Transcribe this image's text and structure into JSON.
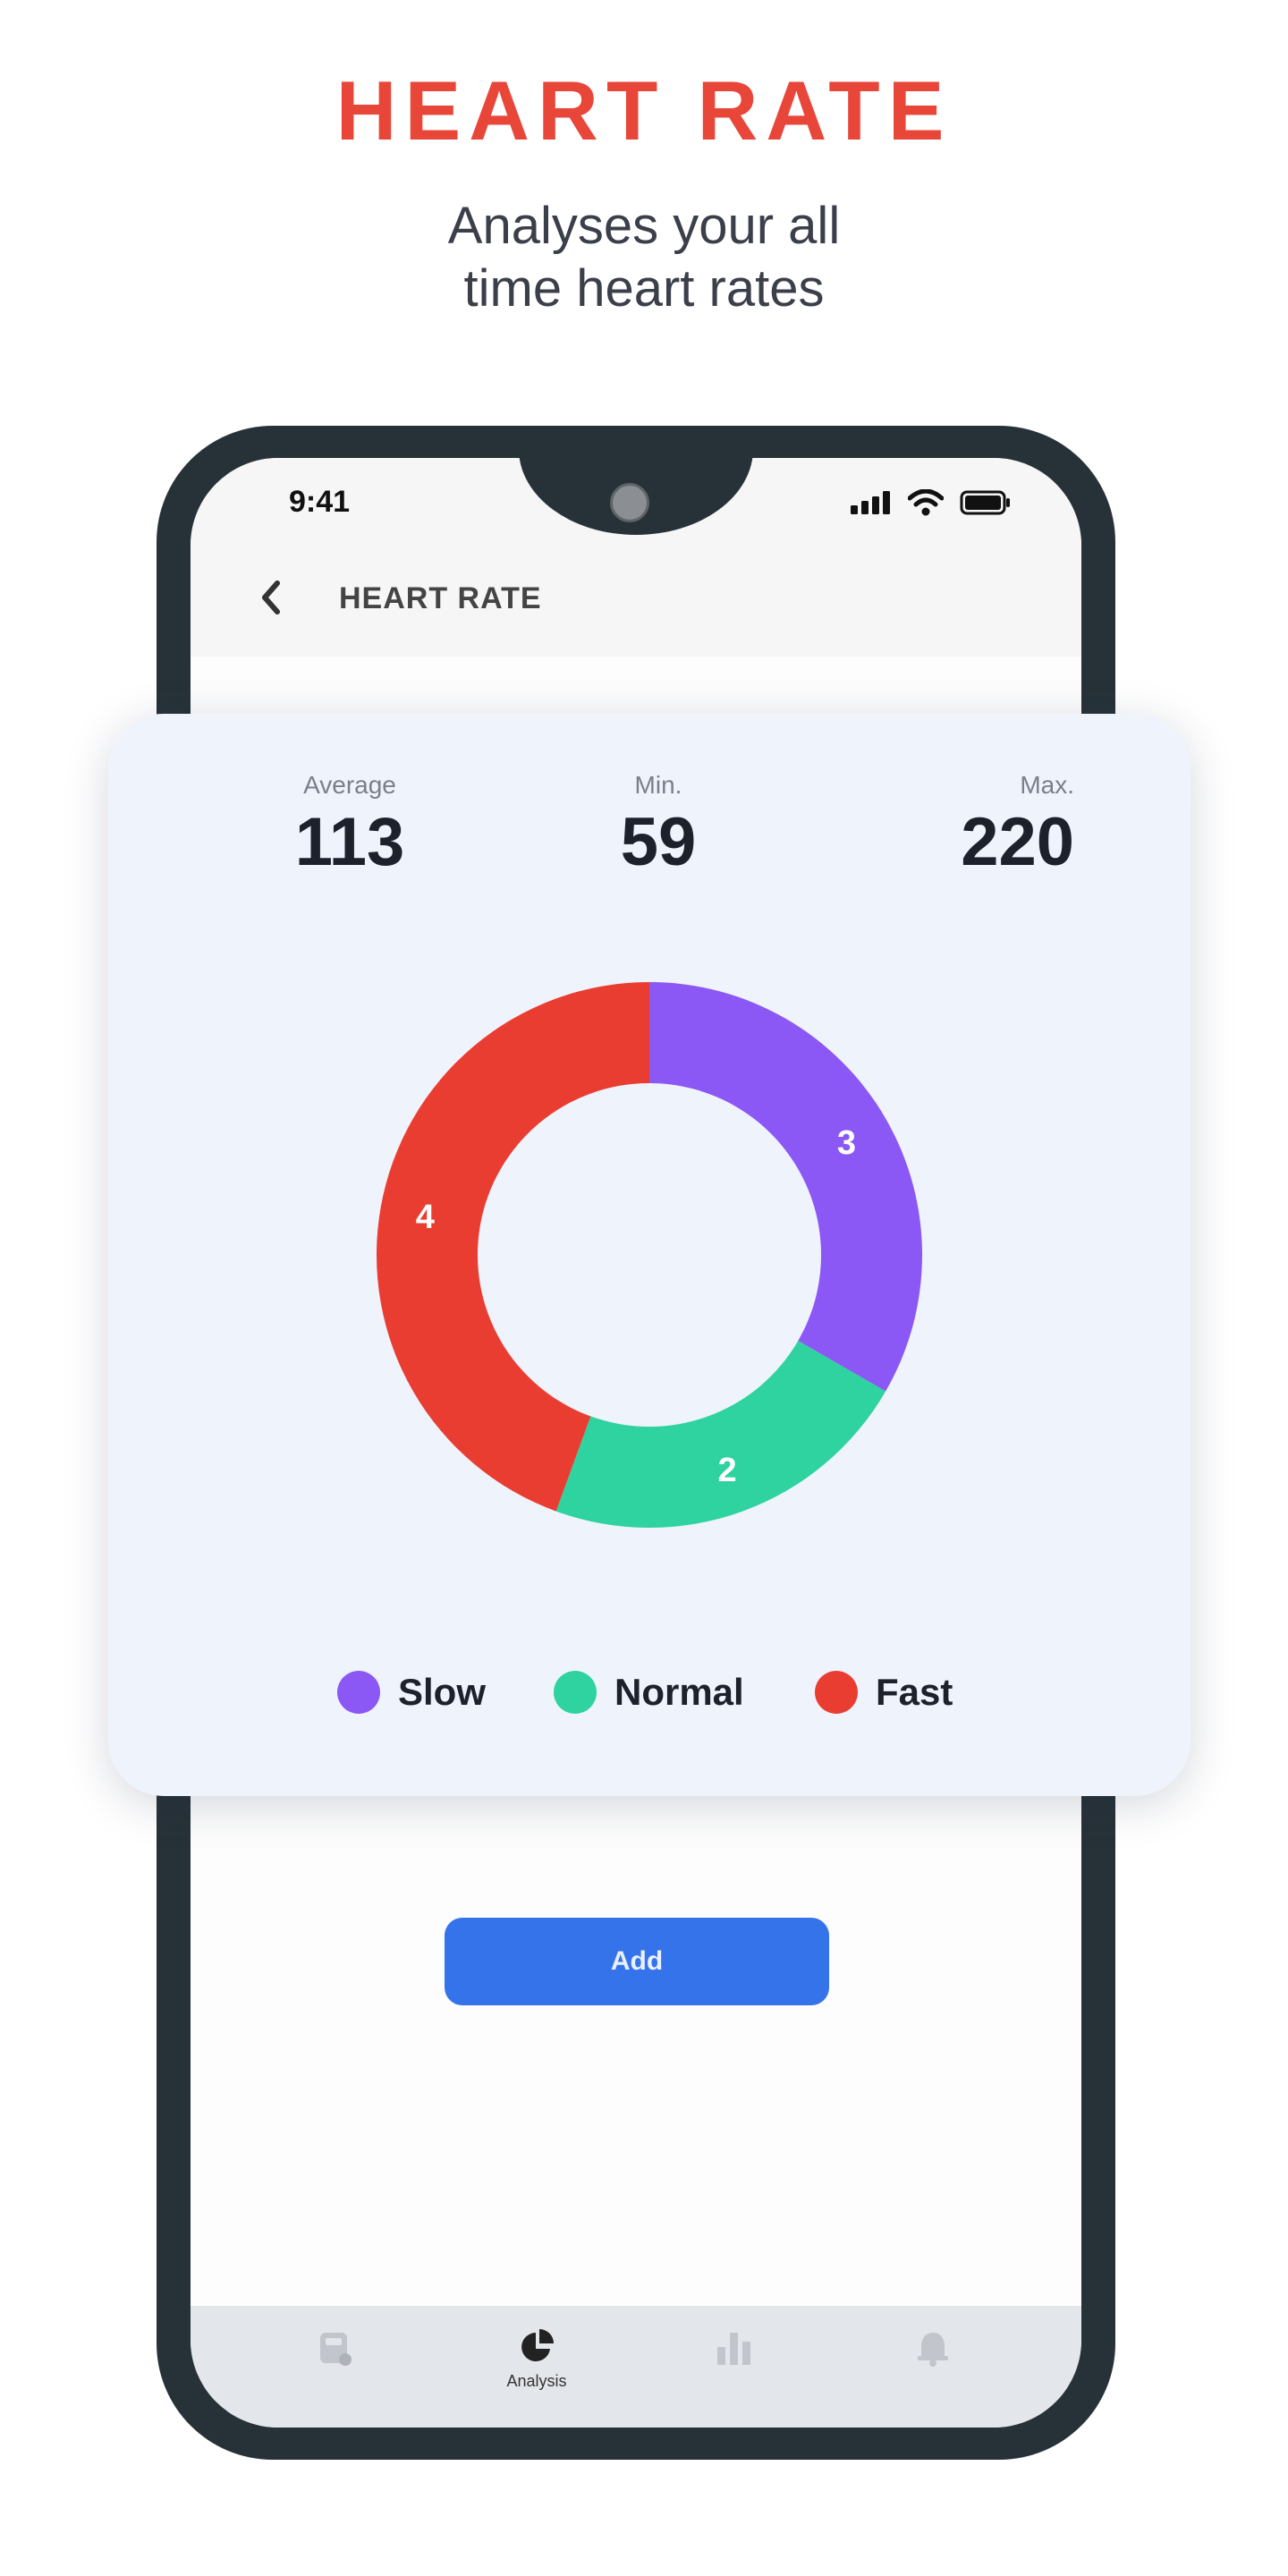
{
  "promo": {
    "title": "HEART RATE",
    "subtitle_line1": "Analyses your all",
    "subtitle_line2": "time heart rates"
  },
  "status_bar": {
    "time": "9:41",
    "icons": [
      "signal-icon",
      "wifi-icon",
      "battery-icon"
    ]
  },
  "header": {
    "back_icon": "chevron-left-icon",
    "title": "HEART RATE"
  },
  "stats": {
    "average_label": "Average",
    "average_value": "113",
    "min_label": "Min.",
    "min_value": "59",
    "max_label": "Max.",
    "max_value": "220"
  },
  "chart_data": {
    "type": "pie",
    "categories": [
      "Slow",
      "Normal",
      "Fast"
    ],
    "values": [
      3,
      2,
      4
    ],
    "colors": [
      "#8b57f5",
      "#2ed39f",
      "#ea3d32"
    ],
    "title": "",
    "legend_position": "bottom"
  },
  "actions": {
    "add_label": "Add"
  },
  "bottom_nav": {
    "items": [
      {
        "icon": "device-icon",
        "label": ""
      },
      {
        "icon": "pie-chart-icon",
        "label": "Analysis"
      },
      {
        "icon": "bar-chart-icon",
        "label": ""
      },
      {
        "icon": "alarm-icon",
        "label": ""
      }
    ]
  }
}
